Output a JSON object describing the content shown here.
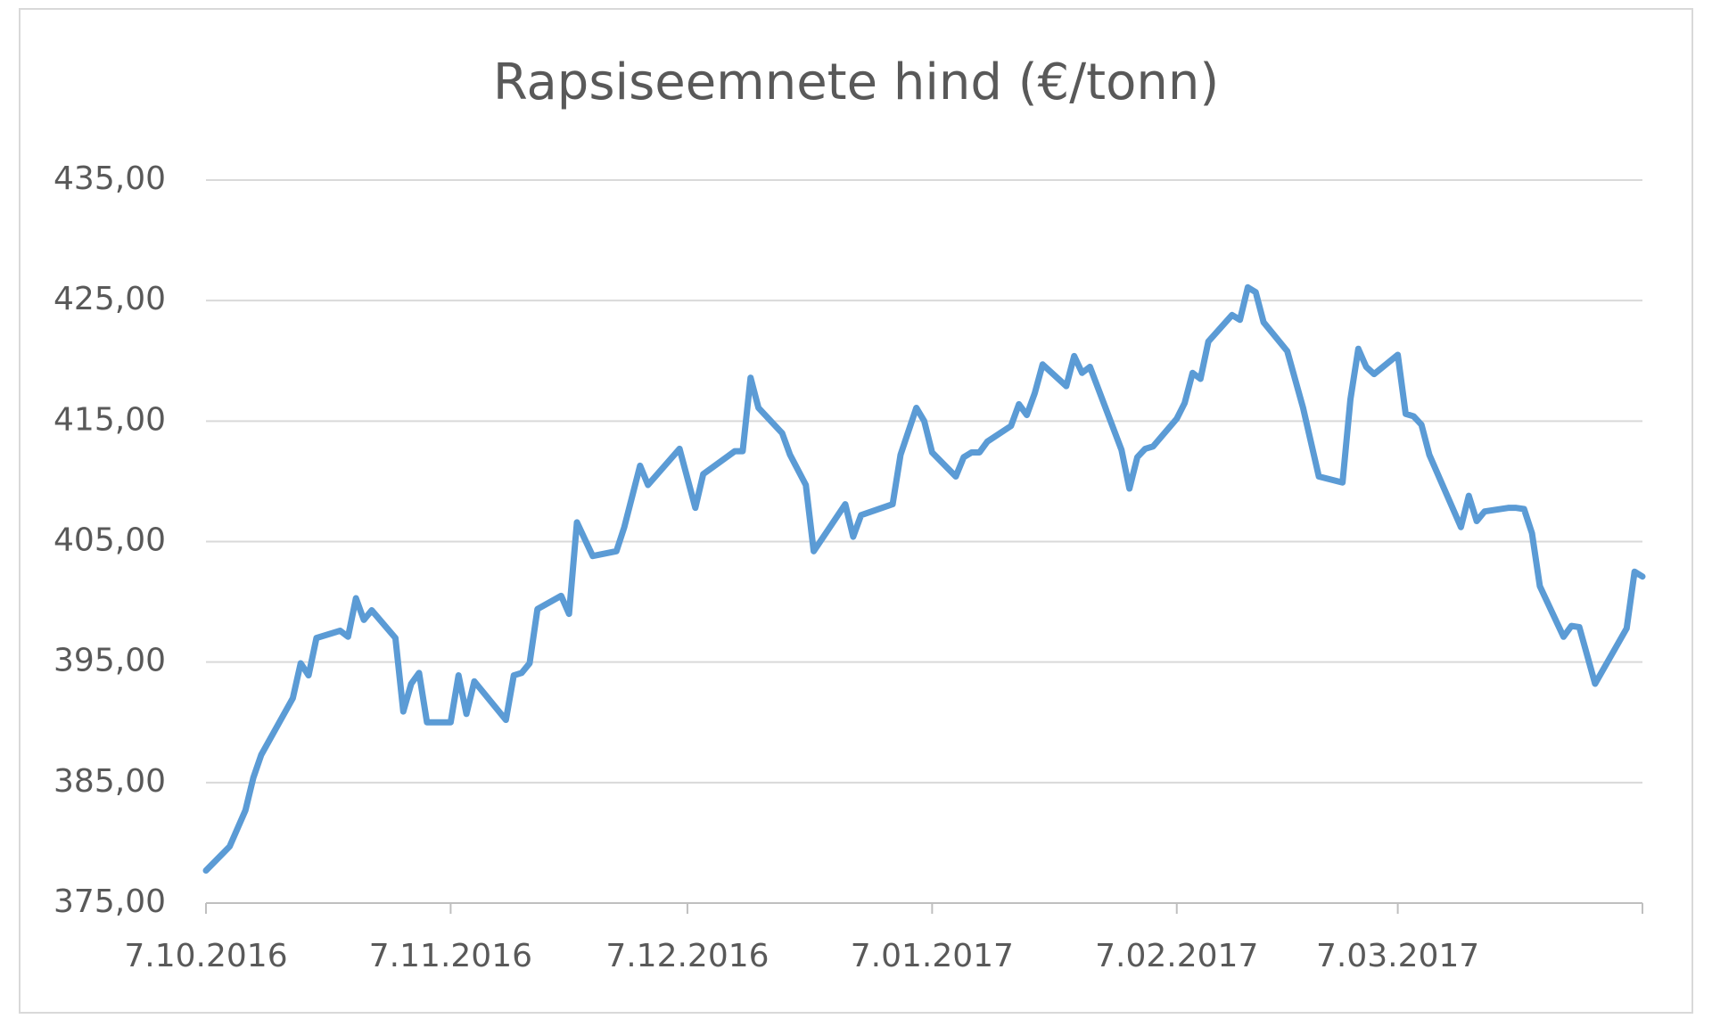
{
  "chart_data": {
    "type": "line",
    "title": "Rapsiseemnete hind (€/tonn)",
    "x": [
      "2016-10-07",
      "2016-10-10",
      "2016-10-12",
      "2016-10-13",
      "2016-10-14",
      "2016-10-18",
      "2016-10-19",
      "2016-10-20",
      "2016-10-21",
      "2016-10-24",
      "2016-10-25",
      "2016-10-26",
      "2016-10-27",
      "2016-10-28",
      "2016-10-31",
      "2016-11-01",
      "2016-11-02",
      "2016-11-03",
      "2016-11-04",
      "2016-11-07",
      "2016-11-08",
      "2016-11-09",
      "2016-11-10",
      "2016-11-14",
      "2016-11-15",
      "2016-11-16",
      "2016-11-17",
      "2016-11-18",
      "2016-11-21",
      "2016-11-22",
      "2016-11-23",
      "2016-11-25",
      "2016-11-28",
      "2016-11-29",
      "2016-12-01",
      "2016-12-02",
      "2016-12-06",
      "2016-12-08",
      "2016-12-09",
      "2016-12-13",
      "2016-12-14",
      "2016-12-15",
      "2016-12-16",
      "2016-12-19",
      "2016-12-20",
      "2016-12-22",
      "2016-12-23",
      "2016-12-27",
      "2016-12-28",
      "2016-12-29",
      "2017-01-02",
      "2017-01-03",
      "2017-01-05",
      "2017-01-06",
      "2017-01-07",
      "2017-01-10",
      "2017-01-11",
      "2017-01-12",
      "2017-01-13",
      "2017-01-14",
      "2017-01-17",
      "2017-01-18",
      "2017-01-19",
      "2017-01-20",
      "2017-01-21",
      "2017-01-24",
      "2017-01-25",
      "2017-01-26",
      "2017-01-27",
      "2017-01-31",
      "2017-02-01",
      "2017-02-02",
      "2017-02-03",
      "2017-02-04",
      "2017-02-07",
      "2017-02-08",
      "2017-02-09",
      "2017-02-10",
      "2017-02-11",
      "2017-02-14",
      "2017-02-15",
      "2017-02-16",
      "2017-02-17",
      "2017-02-18",
      "2017-02-21",
      "2017-02-23",
      "2017-02-25",
      "2017-02-28",
      "2017-03-01",
      "2017-03-02",
      "2017-03-03",
      "2017-03-04",
      "2017-03-07",
      "2017-03-08",
      "2017-03-09",
      "2017-03-10",
      "2017-03-11",
      "2017-03-15",
      "2017-03-16",
      "2017-03-17",
      "2017-03-18",
      "2017-03-21",
      "2017-03-22",
      "2017-03-23",
      "2017-03-24",
      "2017-03-25",
      "2017-03-28",
      "2017-03-29",
      "2017-03-30",
      "2017-04-01",
      "2017-04-05",
      "2017-04-06",
      "2017-04-07"
    ],
    "values": [
      377.7,
      379.7,
      382.7,
      385.4,
      387.3,
      392.0,
      394.9,
      393.9,
      397.0,
      397.6,
      397.1,
      400.3,
      398.5,
      399.3,
      397.0,
      390.9,
      393.2,
      394.1,
      390.0,
      390.0,
      393.9,
      390.7,
      393.4,
      390.2,
      393.9,
      394.1,
      394.9,
      399.4,
      400.5,
      399.0,
      406.6,
      403.8,
      404.2,
      406.2,
      411.3,
      409.7,
      412.7,
      407.8,
      410.6,
      412.5,
      412.5,
      418.6,
      416.1,
      414.0,
      412.2,
      409.7,
      404.2,
      408.1,
      405.4,
      407.2,
      408.1,
      412.2,
      416.1,
      415.0,
      412.4,
      410.4,
      412.0,
      412.4,
      412.4,
      413.3,
      414.6,
      416.4,
      415.5,
      417.3,
      419.7,
      417.9,
      420.4,
      419.0,
      419.5,
      412.6,
      409.4,
      412.0,
      412.7,
      412.9,
      415.2,
      416.5,
      419.0,
      418.5,
      421.6,
      423.8,
      423.4,
      426.1,
      425.7,
      423.2,
      420.8,
      416.1,
      410.4,
      409.9,
      416.8,
      421.0,
      419.5,
      418.9,
      420.5,
      415.6,
      415.4,
      414.7,
      412.2,
      406.2,
      408.8,
      406.7,
      407.5,
      407.8,
      407.8,
      407.7,
      405.7,
      401.3,
      397.1,
      398.0,
      397.9,
      393.2,
      397.8,
      402.5,
      402.1
    ],
    "color": "#5b9bd5",
    "xlim": [
      "2016-10-07",
      "2017-04-07"
    ],
    "xticks": [
      {
        "value": "2016-10-07",
        "label": "7.10.2016"
      },
      {
        "value": "2016-11-07",
        "label": "7.11.2016"
      },
      {
        "value": "2016-12-07",
        "label": "7.12.2016"
      },
      {
        "value": "2017-01-07",
        "label": "7.01.2017"
      },
      {
        "value": "2017-02-07",
        "label": "7.02.2017"
      },
      {
        "value": "2017-03-07",
        "label": "7.03.2017"
      }
    ],
    "ylim": [
      375,
      435
    ],
    "yticks": [
      {
        "value": 375,
        "label": "375,00"
      },
      {
        "value": 385,
        "label": "385,00"
      },
      {
        "value": 395,
        "label": "395,00"
      },
      {
        "value": 405,
        "label": "405,00"
      },
      {
        "value": 415,
        "label": "415,00"
      },
      {
        "value": 425,
        "label": "425,00"
      },
      {
        "value": 435,
        "label": "435,00"
      }
    ],
    "grid": true
  }
}
